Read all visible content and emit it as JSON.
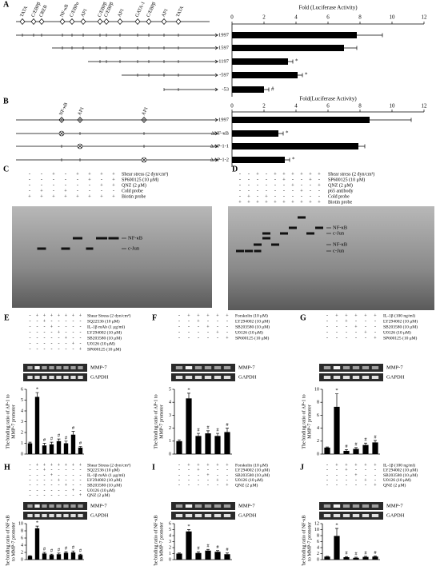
{
  "panels": [
    {
      "label": "A",
      "sites": [
        "TATA",
        "C/EBPβ",
        "CREB",
        "NF-κB",
        "C/EBPα",
        "AP1",
        "C/EBPβ",
        "C/EBPβ",
        "AP1",
        "GATA-1",
        "C/EBPβ",
        "AP1",
        "TATA"
      ],
      "chart_data": {
        "type": "bar",
        "orientation": "horizontal",
        "xlabel": "Fold (Luciferase Activity)",
        "categories": [
          "-1997",
          "-1597",
          "-1197",
          "-597",
          "-53"
        ],
        "values": [
          7.8,
          7.0,
          3.5,
          4.1,
          2.0
        ],
        "errors": [
          1.6,
          0.8,
          0.3,
          0.3,
          0.3
        ],
        "marks": [
          null,
          null,
          "*",
          "*",
          "#"
        ],
        "xlim": [
          0,
          12
        ],
        "xticks": [
          0,
          2,
          4,
          6,
          8,
          10,
          12
        ],
        "color": "#000000"
      }
    },
    {
      "label": "B",
      "sites": [
        "NF-κB",
        "AP1",
        "AP1"
      ],
      "chart_data": {
        "type": "bar",
        "orientation": "horizontal",
        "xlabel": "Fold(Luciferase Activity)",
        "categories": [
          "-1997",
          "ΔNF-κB",
          "ΔAP-1-1",
          "ΔAP-1-2"
        ],
        "values": [
          8.6,
          2.9,
          7.9,
          3.3
        ],
        "errors": [
          2.6,
          0.3,
          0.4,
          0.3
        ],
        "marks": [
          null,
          "*",
          null,
          "*"
        ],
        "xlim": [
          0,
          12
        ],
        "xticks": [
          0,
          2,
          4,
          6,
          8,
          10,
          12
        ],
        "color": "#000000"
      }
    },
    {
      "label": "C",
      "conditions": [
        {
          "name": "Shear stress (2 dyn/cm²)",
          "signs": [
            "-",
            "-",
            "+",
            "-",
            "+",
            "+",
            "+",
            "+"
          ]
        },
        {
          "name": "SP600125 (10 μM)",
          "signs": [
            "-",
            "-",
            "-",
            "-",
            "-",
            "+",
            "-",
            "+"
          ]
        },
        {
          "name": "QNZ (2 μM)",
          "signs": [
            "-",
            "-",
            "-",
            "-",
            "-",
            "-",
            "+",
            "+"
          ]
        },
        {
          "name": "Cold probe",
          "signs": [
            "-",
            "+",
            "-",
            "+",
            "-",
            "-",
            "-",
            "-"
          ]
        },
        {
          "name": "Biotin probe",
          "signs": [
            "+",
            "+",
            "+",
            "+",
            "+",
            "+",
            "+",
            "+"
          ]
        }
      ],
      "bands": [
        "NF-κB",
        "c-Jun"
      ]
    },
    {
      "label": "D",
      "conditions": [
        {
          "name": "Shear stress (2 dyn/cm²)",
          "signs": [
            "-",
            "-",
            "+",
            "-",
            "+",
            "+",
            "+",
            "+",
            "+",
            "+"
          ]
        },
        {
          "name": "SP600125 (10 μM)",
          "signs": [
            "-",
            "-",
            "-",
            "-",
            "-",
            "+",
            "-",
            "-",
            "+",
            "-"
          ]
        },
        {
          "name": "QNZ (2 μM)",
          "signs": [
            "-",
            "-",
            "-",
            "-",
            "-",
            "-",
            "+",
            "-",
            "-",
            "+"
          ]
        },
        {
          "name": "p65 antibody",
          "signs": [
            "-",
            "-",
            "-",
            "-",
            "-",
            "-",
            "-",
            "+",
            "-",
            "-"
          ]
        },
        {
          "name": "Cold probe",
          "signs": [
            "-",
            "+",
            "-",
            "+",
            "-",
            "-",
            "-",
            "-",
            "-",
            "-"
          ]
        },
        {
          "name": "Biotin probe",
          "signs": [
            "+",
            "+",
            "+",
            "+",
            "+",
            "+",
            "+",
            "+",
            "+",
            "+"
          ]
        }
      ],
      "bands": [
        "NF-κB",
        "c-Jun",
        "NF-κB",
        "c-Jun"
      ]
    },
    {
      "label": "E",
      "conditions": [
        {
          "name": "Shear Stress (2 dyn/cm²)",
          "signs": [
            "-",
            "+",
            "+",
            "+",
            "+",
            "+",
            "+",
            "+"
          ]
        },
        {
          "name": "SQ22536 (10 μM)",
          "signs": [
            "-",
            "-",
            "+",
            "-",
            "-",
            "-",
            "-",
            "-"
          ]
        },
        {
          "name": "IL-1β mAb (1 μg/ml)",
          "signs": [
            "-",
            "-",
            "-",
            "+",
            "-",
            "-",
            "-",
            "-"
          ]
        },
        {
          "name": "LY294002 (10 μM)",
          "signs": [
            "-",
            "-",
            "-",
            "-",
            "+",
            "-",
            "-",
            "-"
          ]
        },
        {
          "name": "SB203580 (10 μM)",
          "signs": [
            "-",
            "-",
            "-",
            "-",
            "-",
            "+",
            "-",
            "-"
          ]
        },
        {
          "name": "U0126 (10 μM)",
          "signs": [
            "-",
            "-",
            "-",
            "-",
            "-",
            "-",
            "+",
            "-"
          ]
        },
        {
          "name": "SP600125 (10 μM)",
          "signs": [
            "-",
            "-",
            "-",
            "-",
            "-",
            "-",
            "-",
            "+"
          ]
        }
      ],
      "gel_labels": [
        "MMP-7",
        "GAPDH"
      ],
      "chart_data": {
        "type": "bar",
        "ylabel_lines": [
          "The binding ratio of AP-1 to",
          "MMP-7 promoter"
        ],
        "values": [
          1,
          5.3,
          0.8,
          0.9,
          1.2,
          1.0,
          1.8,
          0.6
        ],
        "errors": [
          0.1,
          0.4,
          0.2,
          0.2,
          0.2,
          0.2,
          0.3,
          0.1
        ],
        "marks": [
          null,
          "*",
          "#",
          "#",
          "#",
          "#",
          "#",
          "#"
        ],
        "ylim": [
          0,
          6
        ],
        "yticks": [
          0,
          1,
          2,
          3,
          4,
          5,
          6
        ],
        "color": "#000000"
      }
    },
    {
      "label": "F",
      "conditions": [
        {
          "name": "Forskolin (10 μM)",
          "signs": [
            "-",
            "+",
            "+",
            "+",
            "+",
            "+"
          ]
        },
        {
          "name": "LY294002 (10 μM)",
          "signs": [
            "-",
            "-",
            "+",
            "-",
            "-",
            "-"
          ]
        },
        {
          "name": "SB203580 (10 μM)",
          "signs": [
            "-",
            "-",
            "-",
            "+",
            "-",
            "-"
          ]
        },
        {
          "name": "U0126 (10 μM)",
          "signs": [
            "-",
            "-",
            "-",
            "-",
            "+",
            "-"
          ]
        },
        {
          "name": "SP600125 (10 μM)",
          "signs": [
            "-",
            "-",
            "-",
            "-",
            "-",
            "+"
          ]
        }
      ],
      "gel_labels": [
        "MMP-7",
        "GAPDH"
      ],
      "chart_data": {
        "type": "bar",
        "ylabel_lines": [
          "The binding ratio of AP-1 to",
          "MMP-7 promoter"
        ],
        "values": [
          1,
          4.3,
          1.4,
          1.6,
          1.4,
          1.7
        ],
        "errors": [
          0.1,
          0.4,
          0.2,
          0.2,
          0.2,
          0.3
        ],
        "marks": [
          null,
          "*",
          "#",
          "#",
          "#",
          "#"
        ],
        "ylim": [
          0,
          5
        ],
        "yticks": [
          0,
          1,
          2,
          3,
          4,
          5
        ],
        "color": "#000000"
      }
    },
    {
      "label": "G",
      "conditions": [
        {
          "name": "IL-1β (100 ng/ml)",
          "signs": [
            "-",
            "+",
            "+",
            "+",
            "+",
            "+"
          ]
        },
        {
          "name": "LY294002 (10 μM)",
          "signs": [
            "-",
            "-",
            "+",
            "-",
            "-",
            "-"
          ]
        },
        {
          "name": "SB203580 (10 μM)",
          "signs": [
            "-",
            "-",
            "-",
            "+",
            "-",
            "-"
          ]
        },
        {
          "name": "U0126 (10 μM)",
          "signs": [
            "-",
            "-",
            "-",
            "-",
            "+",
            "-"
          ]
        },
        {
          "name": "SP600125 (10 μM)",
          "signs": [
            "-",
            "-",
            "-",
            "-",
            "-",
            "+"
          ]
        }
      ],
      "gel_labels": [
        "MMP-7",
        "GAPDH"
      ],
      "chart_data": {
        "type": "bar",
        "ylabel_lines": [
          "The binding ratio of AP-1 to",
          "MMP-7 promoter"
        ],
        "values": [
          1,
          7.3,
          0.5,
          0.8,
          1.4,
          1.8
        ],
        "errors": [
          0.1,
          2.0,
          0.2,
          0.2,
          0.3,
          0.3
        ],
        "marks": [
          null,
          "*",
          "#",
          "#",
          "#",
          "#"
        ],
        "ylim": [
          0,
          10
        ],
        "yticks": [
          0,
          2,
          4,
          6,
          8,
          10
        ],
        "color": "#000000"
      }
    },
    {
      "label": "H",
      "conditions": [
        {
          "name": "Shear Stress (2 dyn/cm²)",
          "signs": [
            "-",
            "+",
            "+",
            "+",
            "+",
            "+",
            "+",
            "+"
          ]
        },
        {
          "name": "SQ22536 (10 μM)",
          "signs": [
            "-",
            "-",
            "+",
            "-",
            "-",
            "-",
            "-",
            "-"
          ]
        },
        {
          "name": "IL-1β mAb (1 μg/ml)",
          "signs": [
            "-",
            "-",
            "-",
            "+",
            "-",
            "-",
            "-",
            "-"
          ]
        },
        {
          "name": "LY294002 (10 μM)",
          "signs": [
            "-",
            "-",
            "-",
            "-",
            "+",
            "-",
            "-",
            "-"
          ]
        },
        {
          "name": "SB203580 (10 μM)",
          "signs": [
            "-",
            "-",
            "-",
            "-",
            "-",
            "+",
            "-",
            "-"
          ]
        },
        {
          "name": "U0126 (10 μM)",
          "signs": [
            "-",
            "-",
            "-",
            "-",
            "-",
            "-",
            "+",
            "-"
          ]
        },
        {
          "name": "QNZ (2 μM)",
          "signs": [
            "-",
            "-",
            "-",
            "-",
            "-",
            "-",
            "-",
            "+"
          ]
        }
      ],
      "gel_labels": [
        "MMP-7",
        "GAPDH"
      ],
      "chart_data": {
        "type": "bar",
        "ylabel_lines": [
          "The binding ratio of NF-κB",
          "to MMP-7 promoter"
        ],
        "values": [
          1,
          8.7,
          1.7,
          1.3,
          1.5,
          1.9,
          2.0,
          1.3
        ],
        "errors": [
          0.1,
          0.6,
          0.3,
          0.2,
          0.3,
          0.3,
          0.4,
          0.2
        ],
        "marks": [
          null,
          "*",
          "#",
          "#",
          "#",
          "#",
          "#",
          "#"
        ],
        "ylim": [
          0,
          10
        ],
        "yticks": [
          0,
          2,
          4,
          6,
          8,
          10
        ],
        "color": "#000000"
      }
    },
    {
      "label": "I",
      "conditions": [
        {
          "name": "Forskolin (10 μM)",
          "signs": [
            "-",
            "+",
            "+",
            "+",
            "+",
            "+"
          ]
        },
        {
          "name": "LY294002 (10 μM)",
          "signs": [
            "-",
            "-",
            "+",
            "-",
            "-",
            "-"
          ]
        },
        {
          "name": "SB203580 (10 μM)",
          "signs": [
            "-",
            "-",
            "-",
            "+",
            "-",
            "-"
          ]
        },
        {
          "name": "U0126 (10 μM)",
          "signs": [
            "-",
            "-",
            "-",
            "-",
            "+",
            "-"
          ]
        },
        {
          "name": "QNZ (2 μM)",
          "signs": [
            "-",
            "-",
            "-",
            "-",
            "-",
            "+"
          ]
        }
      ],
      "gel_labels": [
        "MMP-7",
        "GAPDH"
      ],
      "chart_data": {
        "type": "bar",
        "ylabel_lines": [
          "The binding ratio of NF-κB",
          "to MMP-7 promoter"
        ],
        "values": [
          1,
          4.7,
          1.1,
          1.5,
          1.3,
          0.9
        ],
        "errors": [
          0.1,
          0.3,
          0.2,
          0.2,
          0.2,
          0.2
        ],
        "marks": [
          null,
          "*",
          "#",
          "#",
          "#",
          "#"
        ],
        "ylim": [
          0,
          6
        ],
        "yticks": [
          0,
          1,
          2,
          3,
          4,
          5,
          6
        ],
        "color": "#000000"
      }
    },
    {
      "label": "J",
      "conditions": [
        {
          "name": "IL-1β (100 ng/ml)",
          "signs": [
            "-",
            "+",
            "+",
            "+",
            "+",
            "+"
          ]
        },
        {
          "name": "LY294002 (10 μM)",
          "signs": [
            "-",
            "-",
            "+",
            "-",
            "-",
            "-"
          ]
        },
        {
          "name": "SB203580 (10 μM)",
          "signs": [
            "-",
            "-",
            "-",
            "+",
            "-",
            "-"
          ]
        },
        {
          "name": "U0126 (10 μM)",
          "signs": [
            "-",
            "-",
            "-",
            "-",
            "+",
            "-"
          ]
        },
        {
          "name": "QNZ (2 μM)",
          "signs": [
            "-",
            "-",
            "-",
            "-",
            "-",
            "+"
          ]
        }
      ],
      "gel_labels": [
        "MMP-7",
        "GAPDH"
      ],
      "chart_data": {
        "type": "bar",
        "ylabel_lines": [
          "The binding ratio of NF-κB",
          "to MMP-7 promoter"
        ],
        "values": [
          1,
          7.9,
          0.8,
          0.6,
          0.9,
          1.0
        ],
        "errors": [
          0.1,
          2.5,
          0.2,
          0.2,
          0.2,
          0.2
        ],
        "marks": [
          null,
          "*",
          "#",
          "#",
          "#",
          "#"
        ],
        "ylim": [
          0,
          12
        ],
        "yticks": [
          0,
          2,
          4,
          6,
          8,
          10,
          12
        ],
        "color": "#000000"
      }
    }
  ]
}
